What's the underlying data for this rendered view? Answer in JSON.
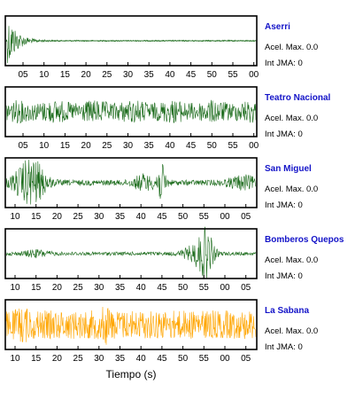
{
  "xlabel": "Tiempo (s)",
  "panels": [
    {
      "station": "Aserri",
      "accel": "Acel. Max. 0.0",
      "jma": "Int JMA: 0",
      "color": "#1b6b1b",
      "ticks": [
        "05",
        "10",
        "15",
        "20",
        "25",
        "30",
        "35",
        "40",
        "45",
        "50",
        "55",
        "00"
      ],
      "signal": "decay-burst"
    },
    {
      "station": "Teatro Nacional",
      "accel": "Acel. Max. 0.0",
      "jma": "Int JMA: 0",
      "color": "#1b6b1b",
      "ticks": [
        "05",
        "10",
        "15",
        "20",
        "25",
        "30",
        "35",
        "40",
        "45",
        "50",
        "55",
        "00"
      ],
      "signal": "uniform-noise"
    },
    {
      "station": "San Miguel",
      "accel": "Acel. Max. 0.0",
      "jma": "Int JMA: 0",
      "color": "#1b6b1b",
      "ticks": [
        "10",
        "15",
        "20",
        "25",
        "30",
        "35",
        "40",
        "45",
        "50",
        "55",
        "00",
        "05"
      ],
      "signal": "two-bursts"
    },
    {
      "station": "Bomberos Quepos",
      "accel": "Acel. Max. 0.0",
      "jma": "Int JMA: 0",
      "color": "#1b6b1b",
      "ticks": [
        "10",
        "15",
        "20",
        "25",
        "30",
        "35",
        "40",
        "45",
        "50",
        "55",
        "00",
        "05"
      ],
      "signal": "late-burst"
    },
    {
      "station": "La Sabana",
      "accel": "Acel. Max. 0.0",
      "jma": "Int JMA: 0",
      "color": "#ffa500",
      "ticks": [
        "10",
        "15",
        "20",
        "25",
        "30",
        "35",
        "40",
        "45",
        "50",
        "55",
        "00",
        "05"
      ],
      "signal": "heavy-noise"
    }
  ],
  "chart_data": {
    "type": "line",
    "xlabel": "Tiempo (s)",
    "ylabel": "",
    "series": [
      {
        "name": "Aserri",
        "x_ticks": [
          "05",
          "10",
          "15",
          "20",
          "25",
          "30",
          "35",
          "40",
          "45",
          "50",
          "55",
          "00"
        ],
        "y_values": []
      },
      {
        "name": "Teatro Nacional",
        "x_ticks": [
          "05",
          "10",
          "15",
          "20",
          "25",
          "30",
          "35",
          "40",
          "45",
          "50",
          "55",
          "00"
        ],
        "y_values": []
      },
      {
        "name": "San Miguel",
        "x_ticks": [
          "10",
          "15",
          "20",
          "25",
          "30",
          "35",
          "40",
          "45",
          "50",
          "55",
          "00",
          "05"
        ],
        "y_values": []
      },
      {
        "name": "Bomberos Quepos",
        "x_ticks": [
          "10",
          "15",
          "20",
          "25",
          "30",
          "35",
          "40",
          "45",
          "50",
          "55",
          "00",
          "05"
        ],
        "y_values": []
      },
      {
        "name": "La Sabana",
        "x_ticks": [
          "10",
          "15",
          "20",
          "25",
          "30",
          "35",
          "40",
          "45",
          "50",
          "55",
          "00",
          "05"
        ],
        "y_values": []
      }
    ]
  }
}
